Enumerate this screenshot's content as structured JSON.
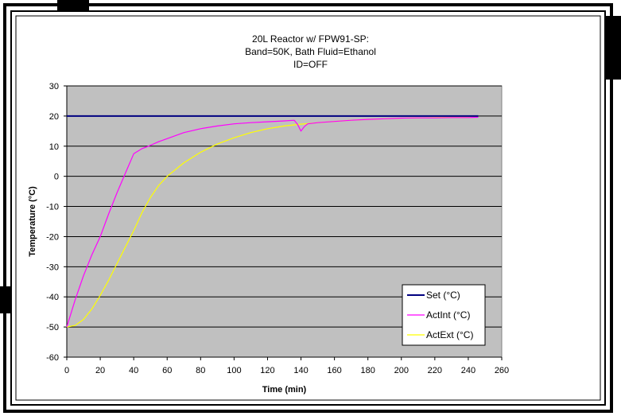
{
  "chart_data": {
    "type": "line",
    "title_lines": [
      "20L Reactor w/ FPW91-SP:",
      "Band=50K, Bath Fluid=Ethanol",
      "ID=OFF"
    ],
    "xlabel": "Time (min)",
    "ylabel": "Temperature (°C)",
    "xlim": [
      0,
      260
    ],
    "ylim": [
      -60,
      30
    ],
    "x_ticks": [
      0,
      20,
      40,
      60,
      80,
      100,
      120,
      140,
      160,
      180,
      200,
      220,
      240,
      260
    ],
    "y_ticks": [
      30,
      20,
      10,
      0,
      -10,
      -20,
      -30,
      -40,
      -50,
      -60
    ],
    "grid": true,
    "legend_position": "bottom-right",
    "series": [
      {
        "name": "Set (°C)",
        "color": "#000080",
        "x": [
          0,
          246
        ],
        "y": [
          20,
          20
        ]
      },
      {
        "name": "ActInt (°C)",
        "color": "#FF00FF",
        "x": [
          0,
          5,
          10,
          15,
          20,
          25,
          30,
          35,
          40,
          45,
          48,
          55,
          60,
          70,
          80,
          90,
          100,
          110,
          120,
          130,
          136,
          138,
          140,
          142,
          144,
          150,
          160,
          170,
          180,
          190,
          200,
          210,
          220,
          230,
          240,
          246
        ],
        "y": [
          -50,
          -41,
          -33,
          -26,
          -20,
          -12.5,
          -5.5,
          1,
          7.5,
          9.2,
          9.8,
          11.5,
          12.5,
          14.5,
          15.8,
          16.7,
          17.4,
          17.8,
          18.1,
          18.4,
          18.6,
          17.2,
          15.0,
          16.5,
          17.4,
          17.8,
          18.2,
          18.6,
          18.9,
          19.1,
          19.3,
          19.4,
          19.4,
          19.5,
          19.5,
          19.6
        ]
      },
      {
        "name": "ActExt (°C)",
        "color": "#FFFF00",
        "x": [
          0,
          5,
          10,
          15,
          20,
          25,
          30,
          35,
          40,
          45,
          50,
          55,
          60,
          70,
          80,
          90,
          100,
          110,
          120,
          130,
          140,
          150,
          160,
          170,
          180,
          190,
          200,
          210,
          220,
          230,
          240,
          246
        ],
        "y": [
          -50,
          -49.5,
          -47.5,
          -44,
          -39.5,
          -34.5,
          -29,
          -23.5,
          -18,
          -12,
          -7,
          -3,
          0,
          4.5,
          8,
          10.7,
          12.8,
          14.5,
          15.8,
          16.7,
          17.3,
          17.8,
          18.2,
          18.6,
          18.9,
          19.1,
          19.3,
          19.4,
          19.5,
          19.6,
          19.6,
          19.7
        ]
      }
    ]
  }
}
